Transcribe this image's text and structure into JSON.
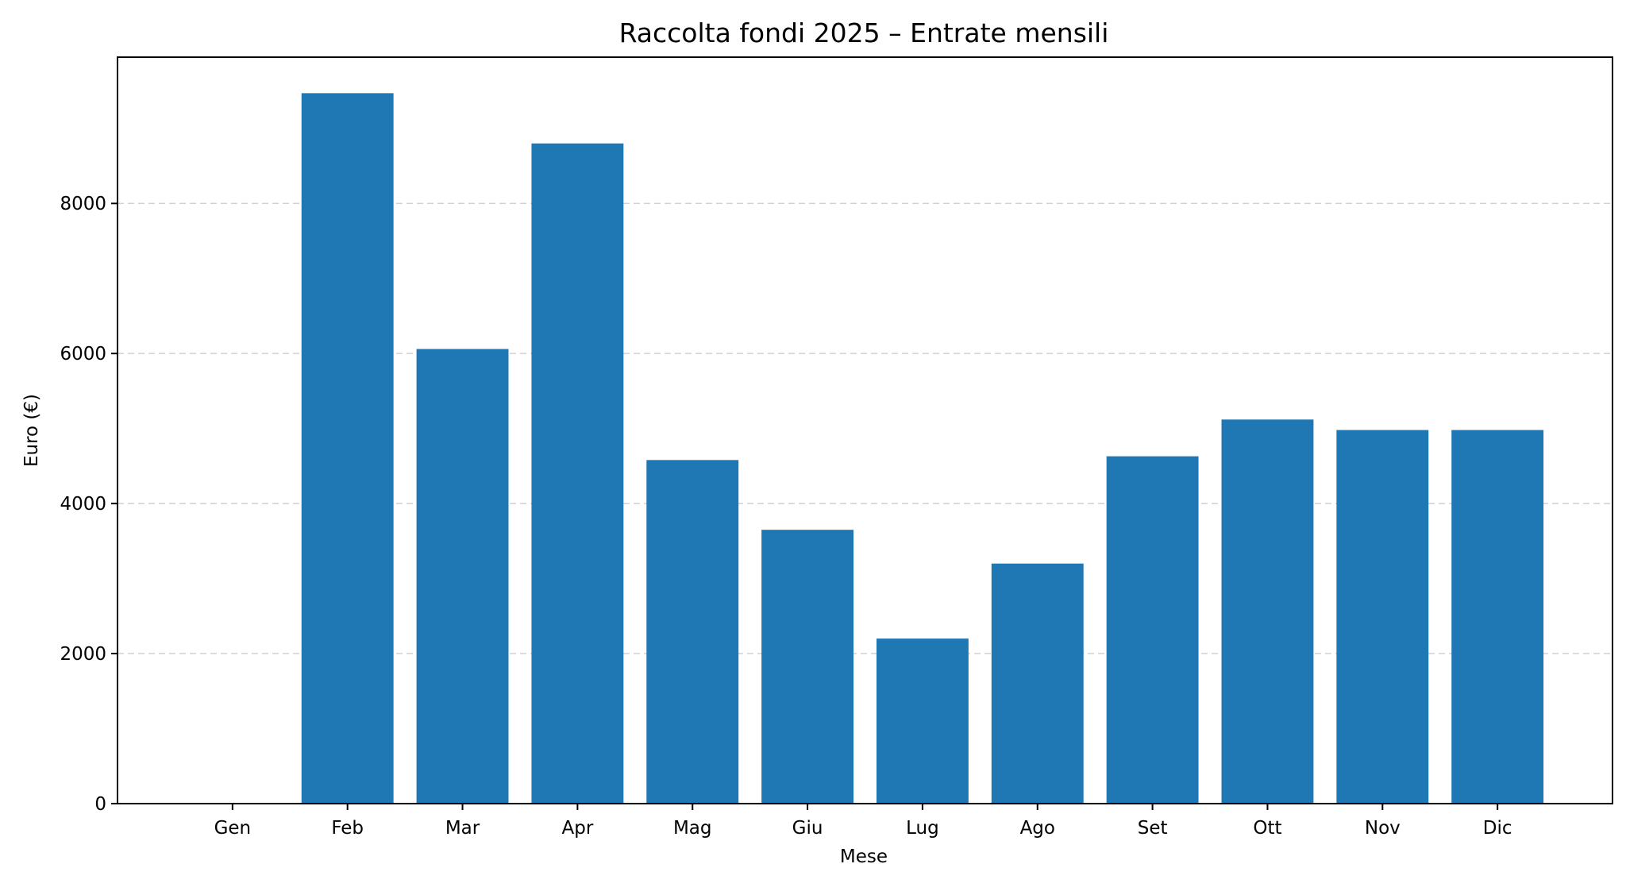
{
  "chart_data": {
    "type": "bar",
    "title": "Raccolta fondi 2025 – Entrate mensili",
    "xlabel": "Mese",
    "ylabel": "Euro (€)",
    "categories": [
      "Gen",
      "Feb",
      "Mar",
      "Apr",
      "Mag",
      "Giu",
      "Lug",
      "Ago",
      "Set",
      "Ott",
      "Nov",
      "Dic"
    ],
    "values": [
      0,
      9470,
      6060,
      8800,
      4580,
      3650,
      2200,
      3200,
      4630,
      5120,
      4980,
      4980
    ],
    "ylim": [
      0,
      9950
    ],
    "yticks": [
      0,
      2000,
      4000,
      6000,
      8000
    ],
    "ytick_labels": [
      "0",
      "2000",
      "4000",
      "6000",
      "8000"
    ],
    "grid": "horizontal dashed",
    "bar_color": "#1f77b4"
  }
}
